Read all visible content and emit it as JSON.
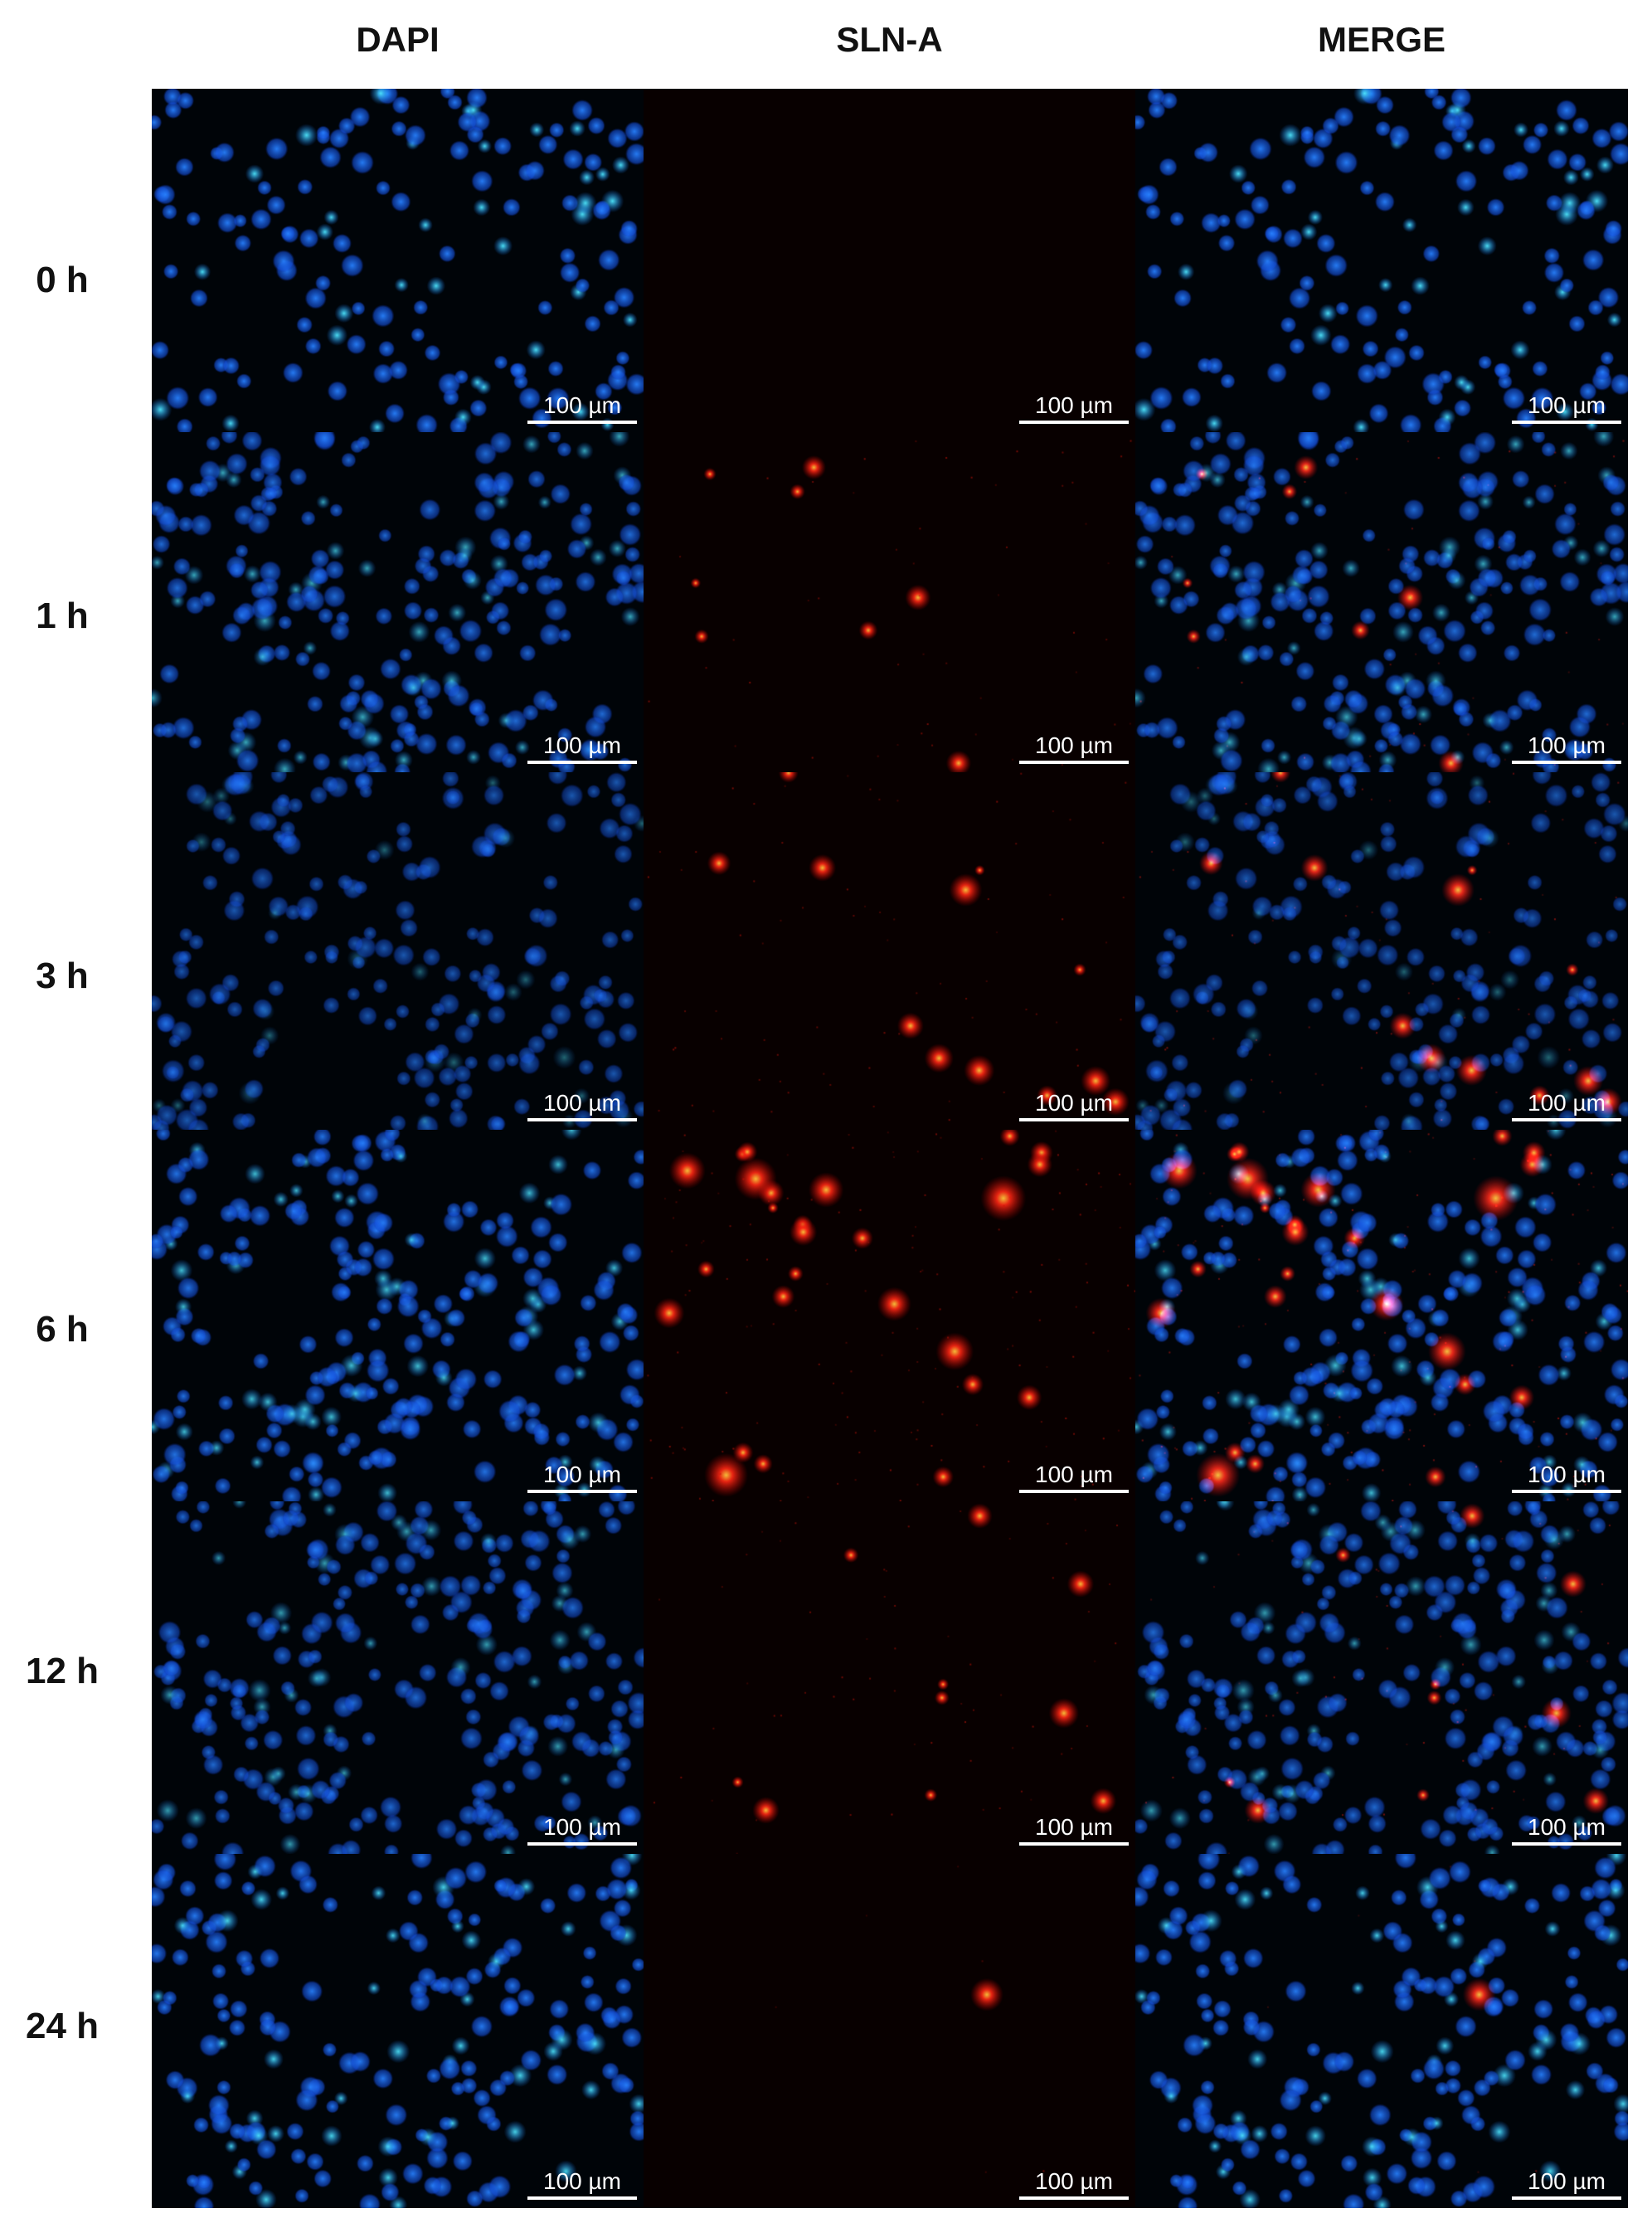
{
  "columns": [
    {
      "key": "dapi",
      "label": "DAPI"
    },
    {
      "key": "sln",
      "label": "SLN-A"
    },
    {
      "key": "merge",
      "label": "MERGE"
    }
  ],
  "rows": [
    {
      "time": "0 h"
    },
    {
      "time": "1 h"
    },
    {
      "time": "3 h"
    },
    {
      "time": "6 h"
    },
    {
      "time": "12 h"
    },
    {
      "time": "24 h"
    }
  ],
  "scale_bar_label": "100 µm",
  "colors": {
    "nucleus_stain": "#1e6fff",
    "nucleus_bright": "#33e0ff",
    "particle_stain": "#ff2a12",
    "background": "#000000"
  }
}
